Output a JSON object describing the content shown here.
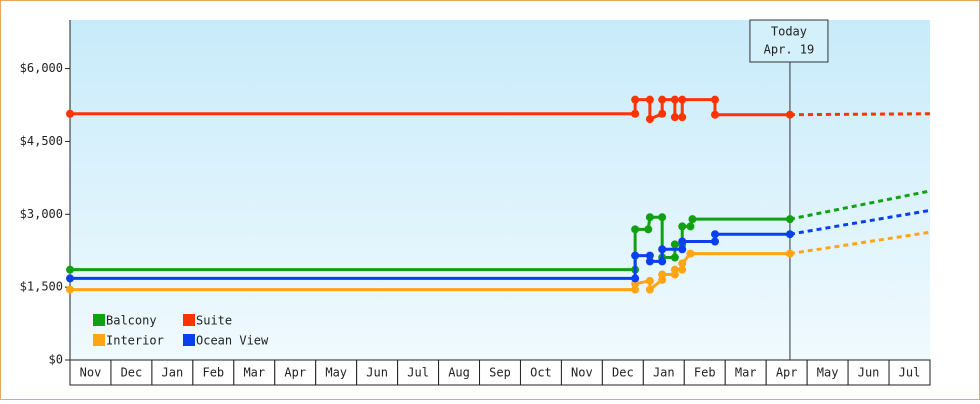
{
  "chart_data": {
    "type": "line",
    "categories": [
      "Nov",
      "Dec",
      "Jan",
      "Feb",
      "Mar",
      "Apr",
      "May",
      "Jun",
      "Jul",
      "Aug",
      "Sep",
      "Oct",
      "Nov",
      "Dec",
      "Jan",
      "Feb",
      "Mar",
      "Apr",
      "May",
      "Jun",
      "Jul"
    ],
    "xlim": [
      0,
      21
    ],
    "ylim": [
      0,
      7000
    ],
    "yticks": [
      {
        "value": 0,
        "label": "$0"
      },
      {
        "value": 1500,
        "label": "$1,500"
      },
      {
        "value": 3000,
        "label": "$3,000"
      },
      {
        "value": 4500,
        "label": "$4,500"
      },
      {
        "value": 6000,
        "label": "$6,000"
      }
    ],
    "annotation": {
      "x": 17.58,
      "lines": [
        "Today",
        "Apr. 19"
      ]
    },
    "series": [
      {
        "name": "Balcony",
        "color": "#11a011",
        "x": [
          0,
          13.8,
          13.8,
          14.12,
          14.16,
          14.46,
          14.46,
          14.77,
          14.77,
          14.95,
          14.95,
          15.15,
          15.2,
          17.58
        ],
        "values": [
          1860,
          1860,
          2690,
          2690,
          2940,
          2940,
          2110,
          2110,
          2380,
          2380,
          2750,
          2750,
          2900,
          2900
        ],
        "forecast_x": [
          17.58,
          21
        ],
        "forecast_values": [
          2900,
          3480
        ]
      },
      {
        "name": "Suite",
        "color": "#ff3300",
        "x": [
          0,
          13.8,
          13.8,
          14.16,
          14.16,
          14.46,
          14.46,
          14.77,
          14.77,
          14.95,
          14.95,
          15.75,
          15.75,
          17.58
        ],
        "values": [
          5070,
          5070,
          5360,
          5360,
          4960,
          5070,
          5360,
          5360,
          5000,
          5000,
          5360,
          5360,
          5050,
          5050
        ],
        "forecast_x": [
          17.58,
          21
        ],
        "forecast_values": [
          5050,
          5070
        ]
      },
      {
        "name": "Interior",
        "color": "#ffa515",
        "x": [
          0,
          13.8,
          13.8,
          14.16,
          14.16,
          14.46,
          14.46,
          14.77,
          14.77,
          14.95,
          14.95,
          15.15,
          17.58
        ],
        "values": [
          1450,
          1450,
          1570,
          1630,
          1450,
          1650,
          1760,
          1760,
          1860,
          1860,
          1990,
          2190,
          2190
        ],
        "forecast_x": [
          17.58,
          21
        ],
        "forecast_values": [
          2190,
          2630
        ]
      },
      {
        "name": "Ocean View",
        "color": "#0a3ff0",
        "x": [
          0,
          13.8,
          13.8,
          14.16,
          14.16,
          14.46,
          14.46,
          14.95,
          14.95,
          15.75,
          15.75,
          17.58
        ],
        "values": [
          1680,
          1680,
          2150,
          2150,
          2030,
          2030,
          2280,
          2280,
          2440,
          2440,
          2590,
          2590
        ],
        "forecast_x": [
          17.58,
          21
        ],
        "forecast_values": [
          2590,
          3080
        ]
      }
    ]
  }
}
